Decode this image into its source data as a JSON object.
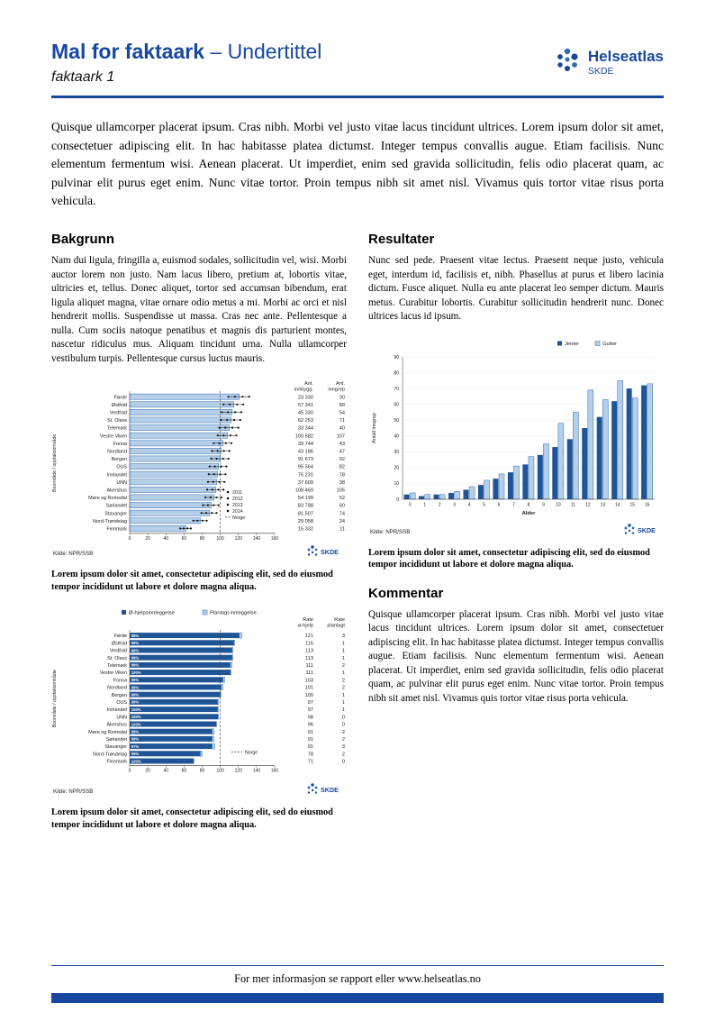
{
  "page": {
    "title": "Mal for faktaark",
    "title_suffix": "– Undertittel",
    "subtitle": "faktaark 1",
    "footer": "For mer informasjon se rapport eller www.helseatlas.no"
  },
  "logo": {
    "name": "Helseatlas",
    "org": "SKDE"
  },
  "colors": {
    "primary": "#17479e",
    "accent": "#2e6db4",
    "bar_light": "#b6cfe9",
    "bar_dark": "#1f5496"
  },
  "intro": "Quisque ullamcorper placerat ipsum. Cras nibh. Morbi vel justo vitae lacus tincidunt ultrices. Lorem ipsum dolor sit amet, consectetuer adipiscing elit. In hac habitasse platea dictumst. Integer tempus convallis augue. Etiam facilisis. Nunc elementum fermentum wisi. Aenean placerat. Ut imperdiet, enim sed gravida sollicitudin, felis odio placerat quam, ac pulvinar elit purus eget enim. Nunc vitae tortor. Proin tempus nibh sit amet nisl. Vivamus quis tortor vitae risus porta vehicula.",
  "sections": {
    "bakgrunn": {
      "heading": "Bakgrunn",
      "body": "Nam dui ligula, fringilla a, euismod sodales, sollicitudin vel, wisi. Morbi auctor lorem non justo. Nam lacus libero, pretium at, lobortis vitae, ultricies et, tellus. Donec aliquet, tortor sed accumsan bibendum, erat ligula aliquet magna, vitae ornare odio metus a mi. Morbi ac orci et nisl hendrerit mollis. Suspendisse ut massa. Cras nec ante. Pellentesque a nulla. Cum sociis natoque penatibus et magnis dis parturient montes, nascetur ridiculus mus. Aliquam tincidunt urna. Nulla ullamcorper vestibulum turpis. Pellentesque cursus luctus mauris."
    },
    "resultater": {
      "heading": "Resultater",
      "body": "Nunc sed pede. Praesent vitae lectus. Praesent neque justo, vehicula eget, interdum id, facilisis et, nibh. Phasellus at purus et libero lacinia dictum. Fusce aliquet. Nulla eu ante placerat leo semper dictum. Mauris metus. Curabitur lobortis. Curabitur sollicitudin hendrerit nunc. Donec ultrices lacus id ipsum."
    },
    "kommentar": {
      "heading": "Kommentar",
      "body": "Quisque ullamcorper placerat ipsum. Cras nibh. Morbi vel justo vitae lacus tincidunt ultrices. Lorem ipsum dolor sit amet, consectetuer adipiscing elit. In hac habitasse platea dictumst. Integer tempus convallis augue. Etiam facilisis. Nunc elementum fermentum wisi. Aenean placerat. Ut imperdiet, enim sed gravida sollicitudin, felis odio placerat quam, ac pulvinar elit purus eget enim. Nunc vitae tortor. Proin tempus nibh sit amet nisl. Vivamus quis tortor vitae risus porta vehicula."
    }
  },
  "captions": {
    "fig1": "Lorem ipsum dolor sit amet, consectetur adipiscing elit, sed do eiusmod tempor incididunt ut labore et dolore magna aliqua.",
    "fig2": "Lorem ipsum dolor sit amet, consectetur adipiscing elit, sed do eiusmod tempor incididunt ut labore et dolore magna aliqua.",
    "fig3": "Lorem ipsum dolor sit amet, consectetur adipiscing elit, sed do eiusmod tempor incididunt ut labore et dolore magna aliqua."
  },
  "chart_data": [
    {
      "type": "bar",
      "orientation": "horizontal",
      "ylabel": "Boområde / opptaksområde",
      "xlim": [
        0,
        160
      ],
      "xticks": [
        0,
        20,
        40,
        60,
        80,
        100,
        120,
        140,
        160
      ],
      "norge_line": 100,
      "legend": [
        "2011",
        "2012",
        "2013",
        "2014",
        "Norge"
      ],
      "columns": [
        [
          "Ant.",
          "innbygg."
        ],
        [
          "Ant.",
          "inngrep"
        ]
      ],
      "source": "Kilde: NPR/SSB",
      "rows": [
        {
          "label": "Førde",
          "rate": 121,
          "innbygg": "23 330",
          "inngrep": "30"
        },
        {
          "label": "Østfold",
          "rate": 115,
          "innbygg": "57 341",
          "inngrep": "89"
        },
        {
          "label": "Vestfold",
          "rate": 113,
          "innbygg": "45 330",
          "inngrep": "54"
        },
        {
          "label": "St. Olavs",
          "rate": 112,
          "innbygg": "62 253",
          "inngrep": "71"
        },
        {
          "label": "Telemark",
          "rate": 110,
          "innbygg": "33 344",
          "inngrep": "40"
        },
        {
          "label": "Vestre Viken",
          "rate": 108,
          "innbygg": "100 582",
          "inngrep": "107"
        },
        {
          "label": "Fonna",
          "rate": 103,
          "innbygg": "39 744",
          "inngrep": "43"
        },
        {
          "label": "Nordland",
          "rate": 101,
          "innbygg": "43 186",
          "inngrep": "47"
        },
        {
          "label": "Bergen",
          "rate": 100,
          "innbygg": "91 673",
          "inngrep": "92"
        },
        {
          "label": "OUS",
          "rate": 98,
          "innbygg": "95 564",
          "inngrep": "82"
        },
        {
          "label": "Innlandet",
          "rate": 97,
          "innbygg": "75 231",
          "inngrep": "78"
        },
        {
          "label": "UNN",
          "rate": 96,
          "innbygg": "37 609",
          "inngrep": "38"
        },
        {
          "label": "Akershus",
          "rate": 95,
          "innbygg": "108 469",
          "inngrep": "105"
        },
        {
          "label": "Møre og Romsdal",
          "rate": 93,
          "innbygg": "54 199",
          "inngrep": "52"
        },
        {
          "label": "Sørlandet",
          "rate": 90,
          "innbygg": "83 788",
          "inngrep": "60"
        },
        {
          "label": "Stavanger",
          "rate": 88,
          "innbygg": "81 507",
          "inngrep": "74"
        },
        {
          "label": "Nord-Trøndelag",
          "rate": 78,
          "innbygg": "29 058",
          "inngrep": "24"
        },
        {
          "label": "Finnmark",
          "rate": 62,
          "innbygg": "15 332",
          "inngrep": "11"
        }
      ]
    },
    {
      "type": "bar",
      "orientation": "horizontal",
      "stacked": true,
      "ylabel": "Boområde / opptaksområde",
      "xlim": [
        0,
        160
      ],
      "xticks": [
        0,
        20,
        40,
        60,
        80,
        100,
        120,
        140,
        160
      ],
      "norge_line": 100,
      "norge_label": "Norge",
      "legend": [
        "Ø-hjelpsinnleggelse",
        "Planlagt innleggelse"
      ],
      "columns": [
        [
          "Rate",
          "ø-hjelp"
        ],
        [
          "Rate",
          "planlagt"
        ]
      ],
      "source": "Kilde: NPR/SSB",
      "rows": [
        {
          "label": "Førde",
          "pct": "98%",
          "rate_ohjelp": 121,
          "rate_planlagt": 3
        },
        {
          "label": "Østfold",
          "pct": "99%",
          "rate_ohjelp": 115,
          "rate_planlagt": 1
        },
        {
          "label": "Vestfold",
          "pct": "99%",
          "rate_ohjelp": 113,
          "rate_planlagt": 1
        },
        {
          "label": "St. Olavs",
          "pct": "99%",
          "rate_ohjelp": 113,
          "rate_planlagt": 1
        },
        {
          "label": "Telemark",
          "pct": "99%",
          "rate_ohjelp": 111,
          "rate_planlagt": 2
        },
        {
          "label": "Vestre Viken",
          "pct": "100%",
          "rate_ohjelp": 111,
          "rate_planlagt": 1
        },
        {
          "label": "Fonna",
          "pct": "99%",
          "rate_ohjelp": 103,
          "rate_planlagt": 2
        },
        {
          "label": "Nordland",
          "pct": "99%",
          "rate_ohjelp": 101,
          "rate_planlagt": 2
        },
        {
          "label": "Bergen",
          "pct": "99%",
          "rate_ohjelp": 100,
          "rate_planlagt": 1
        },
        {
          "label": "OUS",
          "pct": "99%",
          "rate_ohjelp": 97,
          "rate_planlagt": 1
        },
        {
          "label": "Innlandet",
          "pct": "100%",
          "rate_ohjelp": 97,
          "rate_planlagt": 1
        },
        {
          "label": "UNN",
          "pct": "100%",
          "rate_ohjelp": 98,
          "rate_planlagt": 0
        },
        {
          "label": "Akershus",
          "pct": "100%",
          "rate_ohjelp": 96,
          "rate_planlagt": 0
        },
        {
          "label": "Møre og Romsdal",
          "pct": "99%",
          "rate_ohjelp": 91,
          "rate_planlagt": 2
        },
        {
          "label": "Sørlandet",
          "pct": "99%",
          "rate_ohjelp": 91,
          "rate_planlagt": 2
        },
        {
          "label": "Stavanger",
          "pct": "97%",
          "rate_ohjelp": 91,
          "rate_planlagt": 3
        },
        {
          "label": "Nord-Trøndelag",
          "pct": "99%",
          "rate_ohjelp": 78,
          "rate_planlagt": 2
        },
        {
          "label": "Finnmark",
          "pct": "100%",
          "rate_ohjelp": 71,
          "rate_planlagt": 0
        }
      ]
    },
    {
      "type": "bar",
      "orientation": "vertical",
      "xlabel": "Alder",
      "ylabel": "Antall inngrep",
      "ylim": [
        0,
        90
      ],
      "yticks": [
        0,
        10,
        20,
        30,
        40,
        50,
        60,
        70,
        80,
        90
      ],
      "categories": [
        "0",
        "1",
        "2",
        "3",
        "4",
        "5",
        "6",
        "7",
        "8",
        "9",
        "10",
        "11",
        "12",
        "13",
        "14",
        "15",
        "16"
      ],
      "series": [
        {
          "name": "Jenter",
          "values": [
            3,
            2,
            3,
            4,
            6,
            9,
            13,
            17,
            22,
            28,
            33,
            38,
            45,
            52,
            62,
            70,
            72
          ]
        },
        {
          "name": "Gutter",
          "values": [
            4,
            3,
            3,
            5,
            8,
            12,
            16,
            21,
            27,
            35,
            48,
            55,
            69,
            63,
            75,
            64,
            73
          ]
        }
      ],
      "source": "Kilde: NPR/SSB"
    }
  ]
}
